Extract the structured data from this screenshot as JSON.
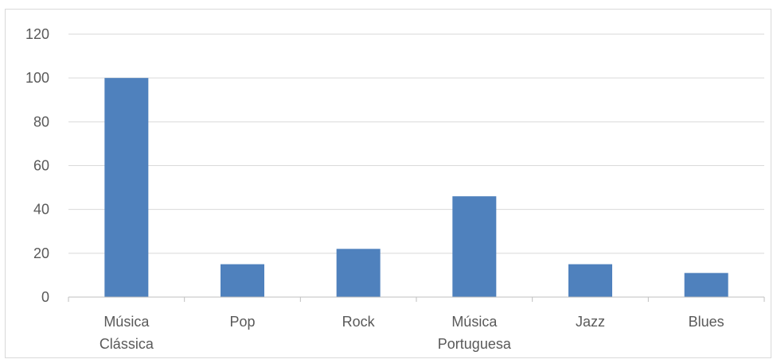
{
  "chart_data": {
    "type": "bar",
    "title": "",
    "xlabel": "",
    "ylabel": "",
    "categories": [
      [
        "Música",
        "Clássica"
      ],
      [
        "Pop"
      ],
      [
        "Rock"
      ],
      [
        "Música",
        "Portuguesa"
      ],
      [
        "Jazz"
      ],
      [
        "Blues"
      ]
    ],
    "values": [
      100,
      15,
      22,
      46,
      15,
      11
    ],
    "ylim": [
      0,
      120
    ],
    "yticks": [
      "0",
      "20",
      "40",
      "60",
      "80",
      "100",
      "120"
    ],
    "grid": true,
    "legend": "none",
    "colors": {
      "bar": "#4f81bd",
      "grid": "#d9d9d9",
      "axis": "#bfbfbf",
      "text": "#595959"
    }
  }
}
